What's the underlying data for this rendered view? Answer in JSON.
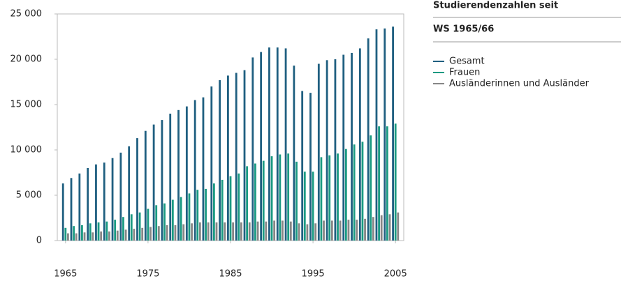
{
  "chart_data": {
    "type": "bar",
    "title": "Studierendenzahlen seit",
    "subtitle": "WS 1965/66",
    "x": [
      1965,
      1966,
      1967,
      1968,
      1969,
      1970,
      1971,
      1972,
      1973,
      1974,
      1975,
      1976,
      1977,
      1978,
      1979,
      1980,
      1981,
      1982,
      1983,
      1984,
      1985,
      1986,
      1987,
      1988,
      1989,
      1990,
      1991,
      1992,
      1993,
      1994,
      1995,
      1996,
      1997,
      1998,
      1999,
      2000,
      2001,
      2002,
      2003,
      2004,
      2005
    ],
    "series": [
      {
        "name": "Gesamt",
        "color": "#1f5f80",
        "values": [
          6300,
          6900,
          7400,
          8000,
          8400,
          8600,
          9100,
          9700,
          10400,
          11300,
          12100,
          12800,
          13300,
          14000,
          14400,
          14800,
          15500,
          15800,
          17000,
          17700,
          18200,
          18500,
          18800,
          20200,
          20800,
          21300,
          21300,
          21200,
          19300,
          16500,
          16300,
          19500,
          19900,
          20000,
          20500,
          20700,
          21200,
          22300,
          23300,
          23400,
          23600
        ]
      },
      {
        "name": "Frauen",
        "color": "#1a9a82",
        "values": [
          1400,
          1600,
          1700,
          1900,
          2000,
          2100,
          2300,
          2600,
          2900,
          3100,
          3500,
          3900,
          4100,
          4500,
          4800,
          5200,
          5600,
          5700,
          6300,
          6700,
          7100,
          7400,
          8200,
          8500,
          8800,
          9300,
          9500,
          9600,
          8700,
          7600,
          7600,
          9200,
          9400,
          9600,
          10100,
          10600,
          10900,
          11600,
          12600,
          12600,
          12900
        ]
      },
      {
        "name": "Ausländerinnen und Ausländer",
        "color": "#868686",
        "values": [
          800,
          800,
          900,
          900,
          1000,
          1000,
          1100,
          1200,
          1300,
          1400,
          1500,
          1600,
          1700,
          1700,
          1800,
          1900,
          2000,
          2000,
          2000,
          2000,
          2000,
          2000,
          2000,
          2100,
          2100,
          2200,
          2200,
          2100,
          1900,
          1800,
          1900,
          2200,
          2200,
          2200,
          2300,
          2300,
          2400,
          2600,
          2800,
          2900,
          3100
        ]
      }
    ],
    "xlim": [
      1964,
      2006
    ],
    "xticks": [
      1965,
      1975,
      1985,
      1995,
      2005
    ],
    "ylim": [
      0,
      25000
    ],
    "yticks": [
      0,
      {
        "value": 5000,
        "label": "5 000"
      },
      {
        "value": 10000,
        "label": "10 000"
      },
      {
        "value": 15000,
        "label": "15 000"
      },
      {
        "value": 20000,
        "label": "20 000"
      },
      {
        "value": 25000,
        "label": "25 000"
      }
    ],
    "grid": false
  }
}
